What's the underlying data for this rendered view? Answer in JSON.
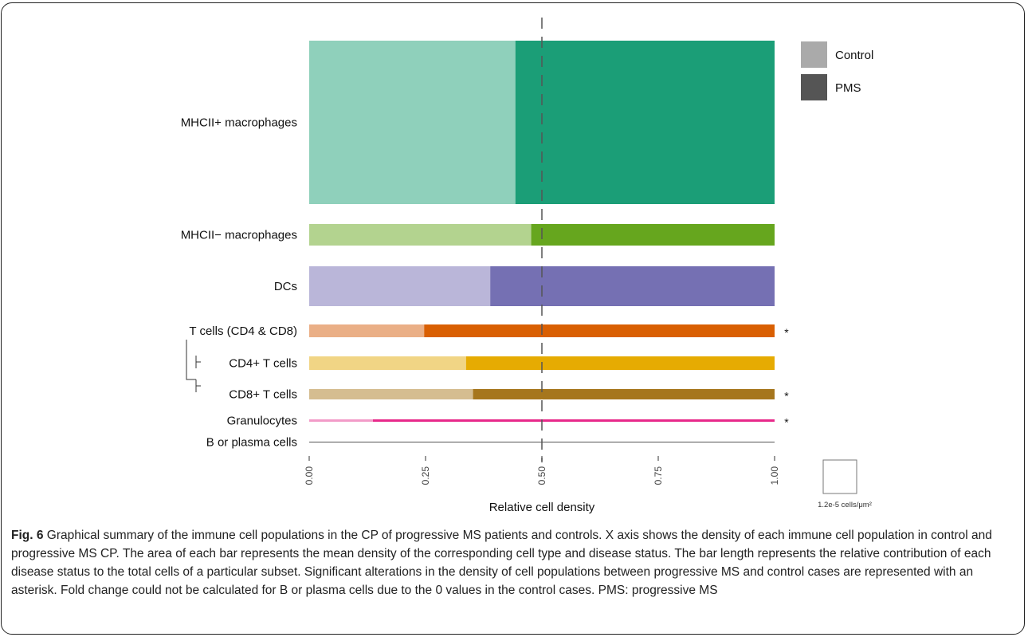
{
  "chart_data": {
    "type": "bar",
    "orientation": "horizontal",
    "stacked": true,
    "xlabel": "Relative cell density",
    "xlim": [
      0,
      1
    ],
    "xticks": [
      "0.00",
      "0.25",
      "0.50",
      "0.75",
      "1.00"
    ],
    "reference_line": 0.5,
    "legend": {
      "placement": "top-right",
      "items": [
        {
          "label": "Control",
          "color": "#aaaaaa"
        },
        {
          "label": "PMS",
          "color": "#555555"
        }
      ]
    },
    "scale_box_label": "1.2e-5 cells/μm²",
    "significance_marker": "*",
    "categories": [
      {
        "label": "MHCII+ macrophages",
        "control": 0.443,
        "pms": 0.557,
        "colors": [
          "#8fd0bb",
          "#1b9e77"
        ],
        "significant": false
      },
      {
        "label": "MHCII− macrophages",
        "control": 0.477,
        "pms": 0.523,
        "colors": [
          "#b3d38f",
          "#66a61e"
        ],
        "significant": false
      },
      {
        "label": "DCs",
        "control": 0.389,
        "pms": 0.611,
        "colors": [
          "#bab6d9",
          "#7570b3"
        ],
        "significant": false
      },
      {
        "label": "T cells (CD4 & CD8)",
        "control": 0.247,
        "pms": 0.753,
        "colors": [
          "#eaaf86",
          "#d95f02"
        ],
        "significant": true
      },
      {
        "label": "CD4+ T cells",
        "control": 0.337,
        "pms": 0.663,
        "colors": [
          "#f1d585",
          "#e6ab02"
        ],
        "significant": false
      },
      {
        "label": "CD8+ T cells",
        "control": 0.352,
        "pms": 0.648,
        "colors": [
          "#d5bd90",
          "#a6761d"
        ],
        "significant": true
      },
      {
        "label": "Granulocytes",
        "control": 0.137,
        "pms": 0.863,
        "colors": [
          "#f29bc8",
          "#e7298a"
        ],
        "significant": true
      },
      {
        "label": "B or plasma cells",
        "control": 0.0,
        "pms": 1.0,
        "colors": [
          "#cccccc",
          "#666666"
        ],
        "significant": false
      }
    ]
  },
  "caption": {
    "fig_label": "Fig. 6",
    "text": "Graphical summary of the immune cell populations in the CP of progressive MS patients and controls. X axis shows the density of each immune cell population in control and progressive MS CP. The area of each bar represents the mean density of the corresponding cell type and disease status. The bar length represents the relative contribution of each disease status to the total cells of a particular subset. Significant alterations in the density of cell populations between progressive MS and control cases are represented with an asterisk. Fold change could not be calculated for B or plasma cells due to the 0 values in the control cases. PMS: progressive MS"
  }
}
